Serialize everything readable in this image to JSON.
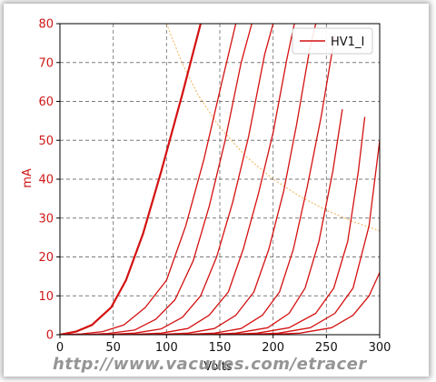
{
  "chart_data": {
    "type": "line",
    "title": "",
    "xlabel": "Volts",
    "ylabel": "mA",
    "xlim": [
      0,
      300
    ],
    "ylim": [
      0,
      80
    ],
    "xticks": [
      "0",
      "50",
      "100",
      "150",
      "200",
      "250",
      "300"
    ],
    "yticks": [
      "0",
      "10",
      "20",
      "30",
      "40",
      "50",
      "60",
      "70",
      "80"
    ],
    "grid": true,
    "legend": {
      "position": "top-right",
      "entries": [
        "HV1_I"
      ]
    },
    "colors": {
      "series": "#d41010",
      "max_dissipation": "#f0b050",
      "grid": "#7a7a7a",
      "ytick": "#d01818"
    },
    "series": [
      {
        "name": "HV1_I",
        "x": [
          0,
          15,
          30,
          48,
          62,
          78,
          95,
          115,
          132
        ],
        "y": [
          0,
          0.8,
          2.5,
          7,
          14,
          26,
          42,
          62,
          80
        ]
      },
      {
        "x": [
          0,
          20,
          40,
          60,
          80,
          100,
          118,
          135,
          152,
          165
        ],
        "y": [
          0,
          0.2,
          0.8,
          2.5,
          7,
          14,
          28,
          45,
          65,
          80
        ]
      },
      {
        "x": [
          20,
          45,
          70,
          90,
          108,
          125,
          140,
          155,
          170,
          180
        ],
        "y": [
          0,
          0.3,
          1.2,
          4,
          9,
          19,
          33,
          50,
          70,
          80
        ]
      },
      {
        "x": [
          40,
          70,
          95,
          115,
          132,
          147,
          162,
          177,
          192,
          200
        ],
        "y": [
          0,
          0.4,
          1.5,
          4.5,
          10,
          20,
          34,
          51,
          72,
          80
        ]
      },
      {
        "x": [
          60,
          95,
          120,
          140,
          158,
          172,
          186,
          200,
          213,
          220
        ],
        "y": [
          0,
          0.4,
          1.6,
          5,
          11,
          22,
          36,
          52,
          71,
          80
        ]
      },
      {
        "x": [
          85,
          120,
          145,
          165,
          182,
          196,
          210,
          222,
          234,
          240
        ],
        "y": [
          0,
          0.4,
          1.6,
          5,
          11,
          22,
          37,
          54,
          73,
          80
        ]
      },
      {
        "x": [
          110,
          145,
          170,
          190,
          206,
          219,
          232,
          245,
          258
        ],
        "y": [
          0,
          0.4,
          1.6,
          5,
          11,
          22,
          38,
          56,
          77
        ]
      },
      {
        "x": [
          130,
          165,
          195,
          215,
          230,
          243,
          256,
          265
        ],
        "y": [
          0,
          0.4,
          1.8,
          5.5,
          12,
          24,
          42,
          58
        ]
      },
      {
        "x": [
          150,
          185,
          215,
          240,
          257,
          270,
          280,
          286
        ],
        "y": [
          0,
          0.4,
          1.8,
          5.5,
          12,
          24,
          42,
          56
        ]
      },
      {
        "x": [
          170,
          205,
          235,
          258,
          275,
          290,
          300
        ],
        "y": [
          0,
          0.4,
          1.8,
          5.5,
          12,
          28,
          50
        ]
      },
      {
        "x": [
          190,
          225,
          255,
          275,
          290,
          300
        ],
        "y": [
          0,
          0.4,
          1.8,
          5,
          10,
          16
        ]
      }
    ],
    "reference_curve": {
      "x": [
        100,
        115,
        130,
        150,
        175,
        200,
        225,
        250,
        275,
        300
      ],
      "y": [
        80,
        69.6,
        61.5,
        53.3,
        45.7,
        40,
        35.6,
        32,
        29.1,
        26.7
      ]
    }
  },
  "watermark": {
    "text": "http://www.vacuues.com/etracer"
  }
}
